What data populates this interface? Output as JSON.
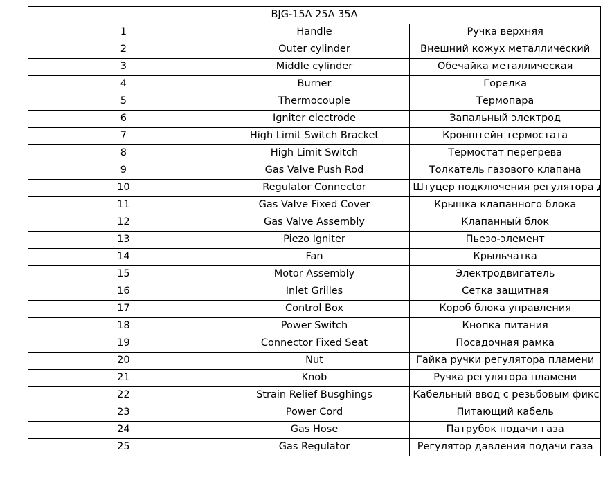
{
  "table": {
    "title": "BJG-15A 25A 35A",
    "rows": [
      {
        "num": "1",
        "en": "Handle",
        "ru": "Ручка верхняя"
      },
      {
        "num": "2",
        "en": "Outer cylinder",
        "ru": "Внешний кожух металлический"
      },
      {
        "num": "3",
        "en": "Middle cylinder",
        "ru": "Обечайка металлическая"
      },
      {
        "num": "4",
        "en": "Burner",
        "ru": "Горелка"
      },
      {
        "num": "5",
        "en": "Thermocouple",
        "ru": "Термопара"
      },
      {
        "num": "6",
        "en": "Igniter electrode",
        "ru": "Запальный электрод"
      },
      {
        "num": "7",
        "en": "High Limit Switch Bracket",
        "ru": "Кронштейн термостата"
      },
      {
        "num": "8",
        "en": "High Limit Switch",
        "ru": "Термостат перегрева"
      },
      {
        "num": "9",
        "en": "Gas Valve Push Rod",
        "ru": "Толкатель газового клапана"
      },
      {
        "num": "10",
        "en": "Regulator Connector",
        "ru": "Штуцер подключения регулятора давления"
      },
      {
        "num": "11",
        "en": "Gas Valve Fixed Cover",
        "ru": "Крышка клапанного блока"
      },
      {
        "num": "12",
        "en": "Gas Valve Assembly",
        "ru": "Клапанный блок"
      },
      {
        "num": "13",
        "en": "Piezo Igniter",
        "ru": "Пьезо-элемент"
      },
      {
        "num": "14",
        "en": "Fan",
        "ru": "Крыльчатка"
      },
      {
        "num": "15",
        "en": "Motor Assembly",
        "ru": "Электродвигатель"
      },
      {
        "num": "16",
        "en": "Inlet Grilles",
        "ru": "Сетка защитная"
      },
      {
        "num": "17",
        "en": "Control Box",
        "ru": "Короб блока управления"
      },
      {
        "num": "18",
        "en": "Power Switch",
        "ru": "Кнопка питания"
      },
      {
        "num": "19",
        "en": "Connector Fixed Seat",
        "ru": "Посадочная рамка"
      },
      {
        "num": "20",
        "en": "Nut",
        "ru": "Гайка ручки регулятора пламени"
      },
      {
        "num": "21",
        "en": "Knob",
        "ru": "Ручка регулятора пламени"
      },
      {
        "num": "22",
        "en": "Strain Relief Busghings",
        "ru": "Кабельный ввод с резьбовым фиксатором"
      },
      {
        "num": "23",
        "en": "Power Cord",
        "ru": "Питающий кабель"
      },
      {
        "num": "24",
        "en": "Gas Hose",
        "ru": "Патрубок подачи газа"
      },
      {
        "num": "25",
        "en": "Gas Regulator",
        "ru": "Регулятор давления подачи газа"
      }
    ]
  }
}
